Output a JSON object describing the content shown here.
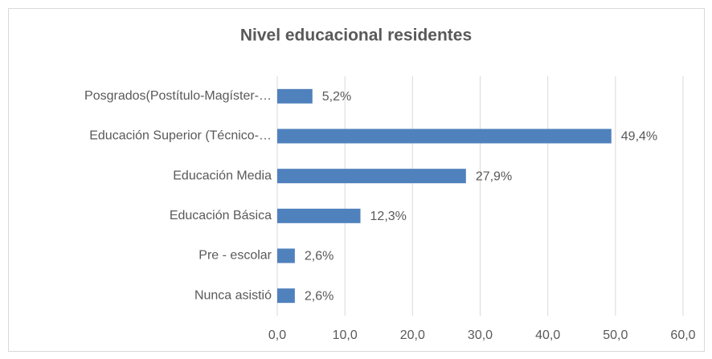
{
  "chart_data": {
    "type": "bar",
    "orientation": "horizontal",
    "title": "Nivel educacional residentes",
    "categories": [
      "Posgrados(Postítulo-Magíster-…",
      "Educación Superior (Técnico-…",
      "Educación Media",
      "Educación Básica",
      "Pre - escolar",
      "Nunca asistió"
    ],
    "values": [
      5.2,
      49.4,
      27.9,
      12.3,
      2.6,
      2.6
    ],
    "value_labels": [
      "5,2%",
      "49,4%",
      "27,9%",
      "12,3%",
      "2,6%",
      "2,6%"
    ],
    "color": "#4f81bd",
    "xlim": [
      0,
      60
    ],
    "xticks": [
      {
        "value": 0,
        "label": "0,0"
      },
      {
        "value": 10,
        "label": "10,0"
      },
      {
        "value": 20,
        "label": "20,0"
      },
      {
        "value": 30,
        "label": "30,0"
      },
      {
        "value": 40,
        "label": "40,0"
      },
      {
        "value": 50,
        "label": "50,0"
      },
      {
        "value": 60,
        "label": "60,0"
      }
    ],
    "grid": true
  }
}
